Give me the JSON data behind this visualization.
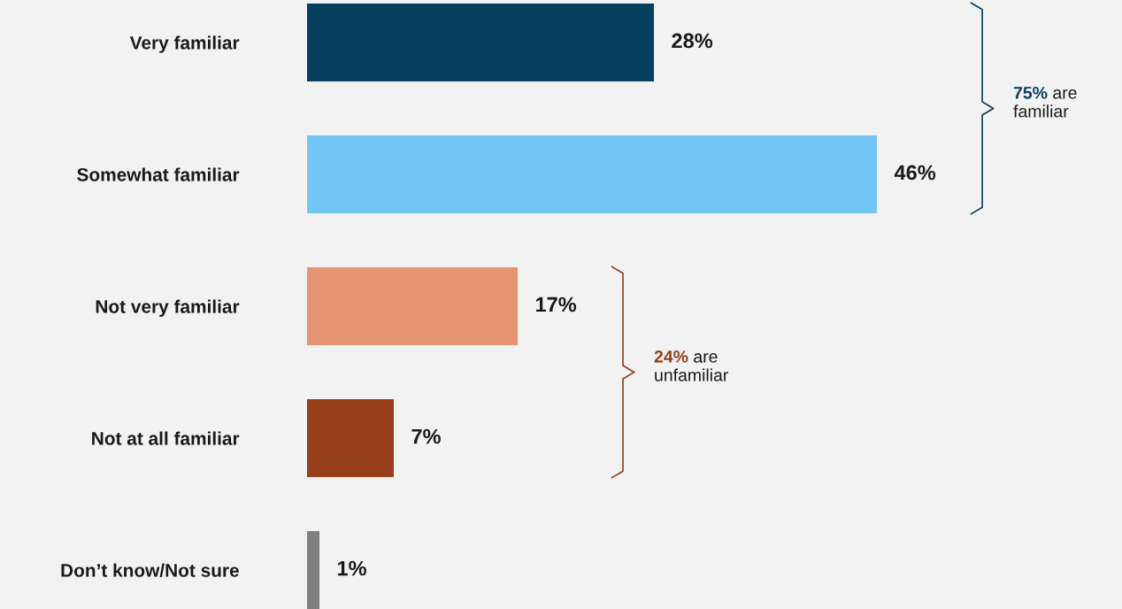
{
  "chart_data": {
    "type": "bar",
    "orientation": "horizontal",
    "categories": [
      "Very familiar",
      "Somewhat familiar",
      "Not very familiar",
      "Not at all familiar",
      "Don’t know/Not sure"
    ],
    "values": [
      28,
      46,
      17,
      7,
      1
    ],
    "colors": [
      "#073f5e",
      "#72c4f5",
      "#e69572",
      "#963f1a",
      "#808080"
    ],
    "value_labels": [
      "28%",
      "46%",
      "17%",
      "7%",
      "1%"
    ],
    "annotations": [
      "75% are familiar",
      "24% are unfamiliar"
    ]
  }
}
